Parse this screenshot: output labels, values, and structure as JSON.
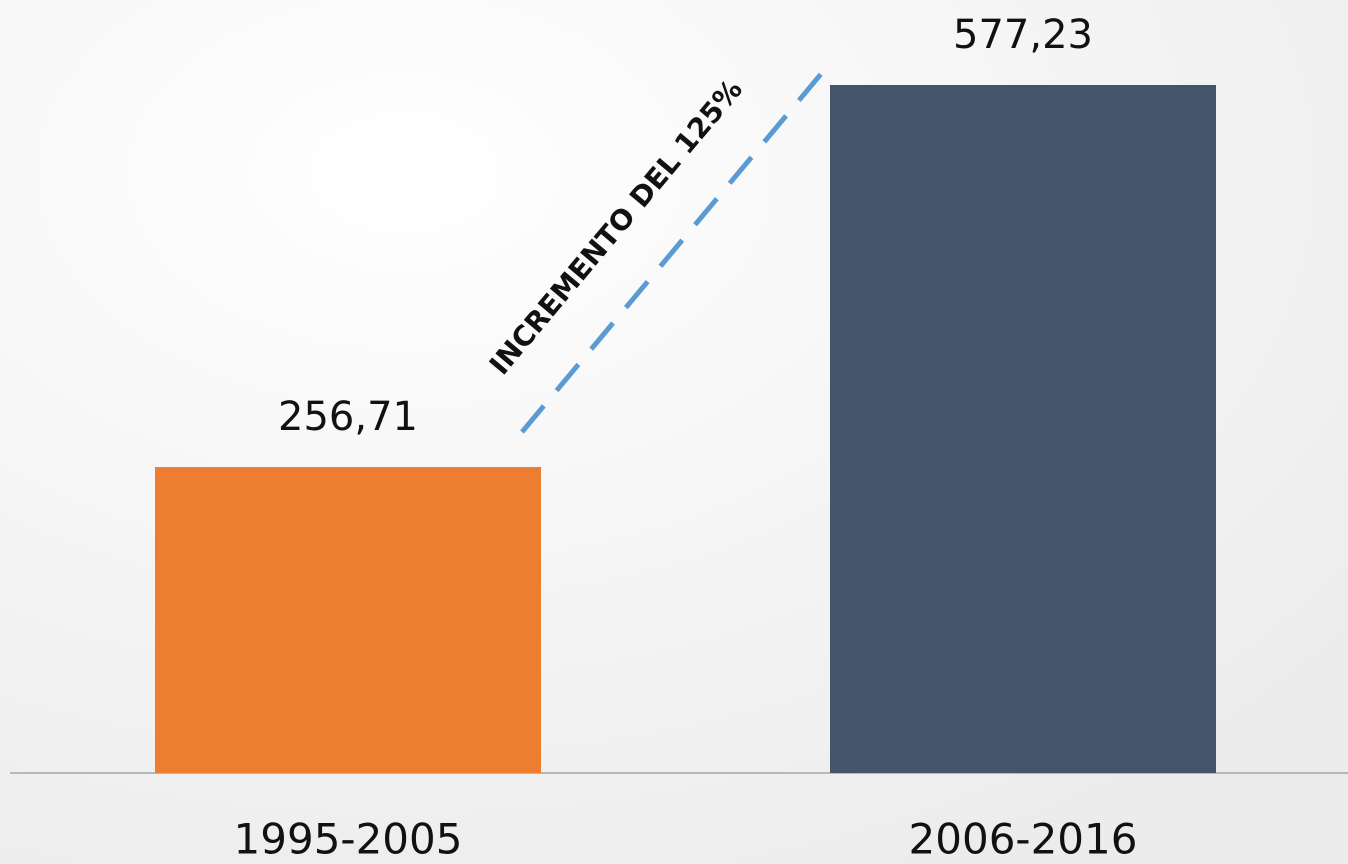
{
  "chart_data": {
    "type": "bar",
    "annotation": "INCREMENTO DEL 125%",
    "categories": [
      "1995-2005",
      "2006-2016"
    ],
    "values": [
      256.71,
      577.23
    ],
    "value_labels": [
      "256,71",
      "577,23"
    ],
    "colors": [
      "#ed7d31",
      "#44546a"
    ]
  }
}
